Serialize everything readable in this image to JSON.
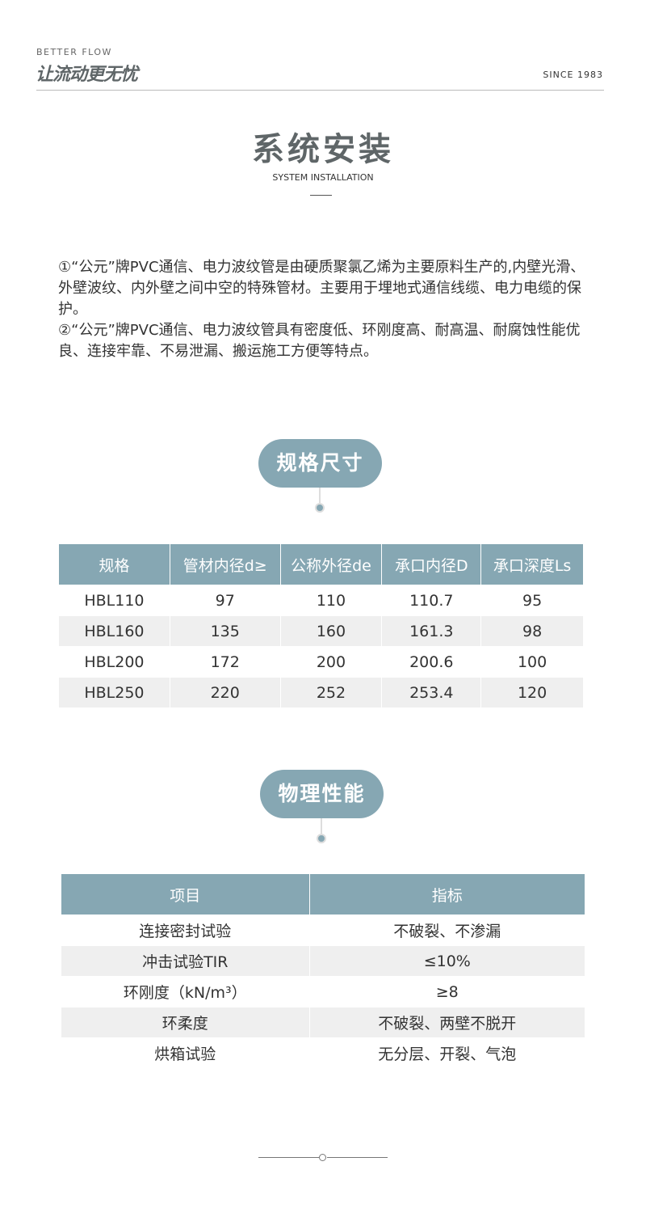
{
  "header": {
    "brand_en": "BETTER FLOW",
    "brand_cn": "让流动更无忧",
    "since": "SINCE 1983"
  },
  "section": {
    "title": "系统安装",
    "subtitle": "SYSTEM INSTALLATION"
  },
  "intro": [
    "①“公元”牌PVC通信、电力波纹管是由硬质聚氯乙烯为主要原料生产的,内壁光滑、外壁波纹、内外壁之间中空的特殊管材。主要用于埋地式通信线缆、电力电缆的保护。",
    "②“公元”牌PVC通信、电力波纹管具有密度低、环刚度高、耐高温、耐腐蚀性能优良、连接牢靠、不易泄漏、搬运施工方便等特点。"
  ],
  "spec": {
    "label": "规格尺寸",
    "headers": [
      "规格",
      "管材内径d≥",
      "公称外径de",
      "承口内径D",
      "承口深度Ls"
    ],
    "rows": [
      [
        "HBL110",
        "97",
        "110",
        "110.7",
        "95"
      ],
      [
        "HBL160",
        "135",
        "160",
        "161.3",
        "98"
      ],
      [
        "HBL200",
        "172",
        "200",
        "200.6",
        "100"
      ],
      [
        "HBL250",
        "220",
        "252",
        "253.4",
        "120"
      ]
    ]
  },
  "physical": {
    "label": "物理性能",
    "headers": [
      "项目",
      "指标"
    ],
    "rows": [
      [
        "连接密封试验",
        "不破裂、不渗漏"
      ],
      [
        "冲击试验TIR",
        "≤10%"
      ],
      [
        "环刚度（kN/m³）",
        "≥8"
      ],
      [
        "环柔度",
        "不破裂、两壁不脱开"
      ],
      [
        "烘箱试验",
        "无分层、开裂、气泡"
      ]
    ]
  },
  "colors": {
    "accent": "#86a7b3",
    "row_alt": "#efefef",
    "title": "#5f6668"
  }
}
